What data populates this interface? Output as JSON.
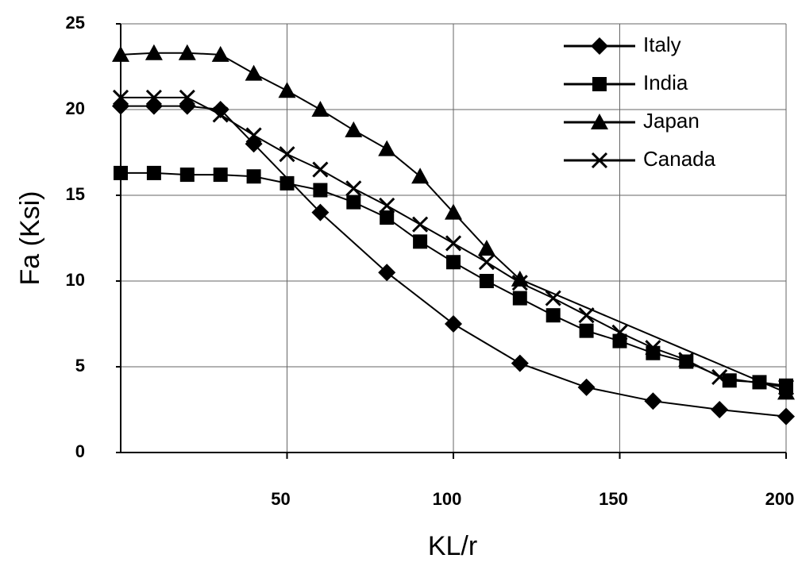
{
  "chart_data": {
    "type": "line",
    "x_label": "KL/r",
    "y_label": "Fa (Ksi)",
    "xlim": [
      0,
      200
    ],
    "ylim": [
      0,
      25
    ],
    "xticks": [
      50,
      100,
      150,
      200
    ],
    "yticks": [
      0,
      5,
      10,
      15,
      20,
      25
    ],
    "grid": true,
    "legend": "top-right",
    "series": [
      {
        "name": "Italy",
        "color": "#000000",
        "marker": "diamond",
        "x": [
          0,
          10,
          20,
          30,
          40,
          60,
          80,
          100,
          120,
          140,
          160,
          180,
          200
        ],
        "values": [
          20.2,
          20.2,
          20.2,
          20,
          18,
          14,
          10.5,
          7.5,
          5.2,
          3.8,
          3,
          2.5,
          2.1
        ]
      },
      {
        "name": "India",
        "color": "#000000",
        "marker": "square",
        "x": [
          0,
          10,
          20,
          30,
          40,
          50,
          60,
          70,
          80,
          90,
          100,
          110,
          120,
          130,
          140,
          150,
          160,
          170,
          183,
          192,
          200
        ],
        "values": [
          16.3,
          16.3,
          16.2,
          16.2,
          16.1,
          15.7,
          15.3,
          14.6,
          13.7,
          12.3,
          11.1,
          10,
          9,
          8,
          7.1,
          6.5,
          5.8,
          5.3,
          4.2,
          4.1,
          3.9
        ]
      },
      {
        "name": "Japan",
        "color": "#000000",
        "marker": "triangle",
        "x": [
          0,
          10,
          20,
          30,
          40,
          50,
          60,
          70,
          80,
          90,
          100,
          110,
          120,
          200
        ],
        "values": [
          23.2,
          23.3,
          23.3,
          23.2,
          22.1,
          21.1,
          20,
          18.8,
          17.7,
          16.1,
          14,
          11.9,
          10.1,
          3.5
        ]
      },
      {
        "name": "Canada",
        "color": "#000000",
        "marker": "x",
        "x": [
          0,
          10,
          20,
          30,
          40,
          50,
          60,
          70,
          80,
          90,
          100,
          110,
          120,
          130,
          140,
          150,
          160,
          170,
          180,
          200
        ],
        "values": [
          20.7,
          20.7,
          20.7,
          19.7,
          18.5,
          17.4,
          16.5,
          15.4,
          14.4,
          13.3,
          12.2,
          11.1,
          9.9,
          9,
          8,
          7,
          6.1,
          5.4,
          4.4,
          3.8
        ]
      }
    ]
  }
}
